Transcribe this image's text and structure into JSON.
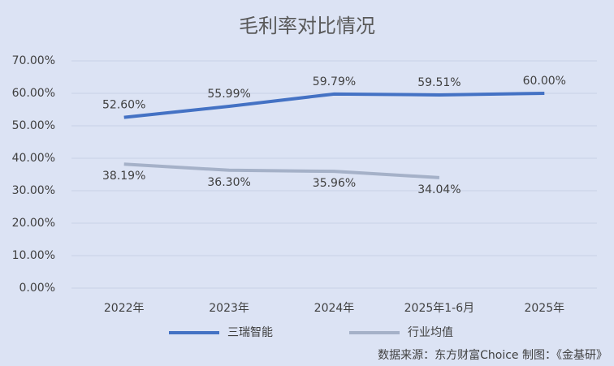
{
  "chart_data": {
    "type": "line",
    "title": "毛利率对比情况",
    "categories": [
      "2022年",
      "2023年",
      "2024年",
      "2025年1-6月",
      "2025年"
    ],
    "series": [
      {
        "name": "三瑞智能",
        "color": "#4472c4",
        "values": [
          52.6,
          55.99,
          59.79,
          59.51,
          60.0
        ],
        "value_labels": [
          "52.60%",
          "55.99%",
          "59.79%",
          "59.51%",
          "60.00%"
        ]
      },
      {
        "name": "行业均值",
        "color": "#a5b1c8",
        "values": [
          38.19,
          36.3,
          35.96,
          34.04,
          null
        ],
        "value_labels": [
          "38.19%",
          "36.30%",
          "35.96%",
          "34.04%",
          null
        ]
      }
    ],
    "ylim": [
      0,
      70
    ],
    "yticks": [
      {
        "value": 0,
        "label": "0.00%"
      },
      {
        "value": 10,
        "label": "10.00%"
      },
      {
        "value": 20,
        "label": "20.00%"
      },
      {
        "value": 30,
        "label": "30.00%"
      },
      {
        "value": 40,
        "label": "40.00%"
      },
      {
        "value": 50,
        "label": "50.00%"
      },
      {
        "value": 60,
        "label": "60.00%"
      },
      {
        "value": 70,
        "label": "70.00%"
      }
    ],
    "grid": true,
    "legend": "bottom",
    "source": "数据来源：东方财富Choice   制图：《金基研》"
  }
}
